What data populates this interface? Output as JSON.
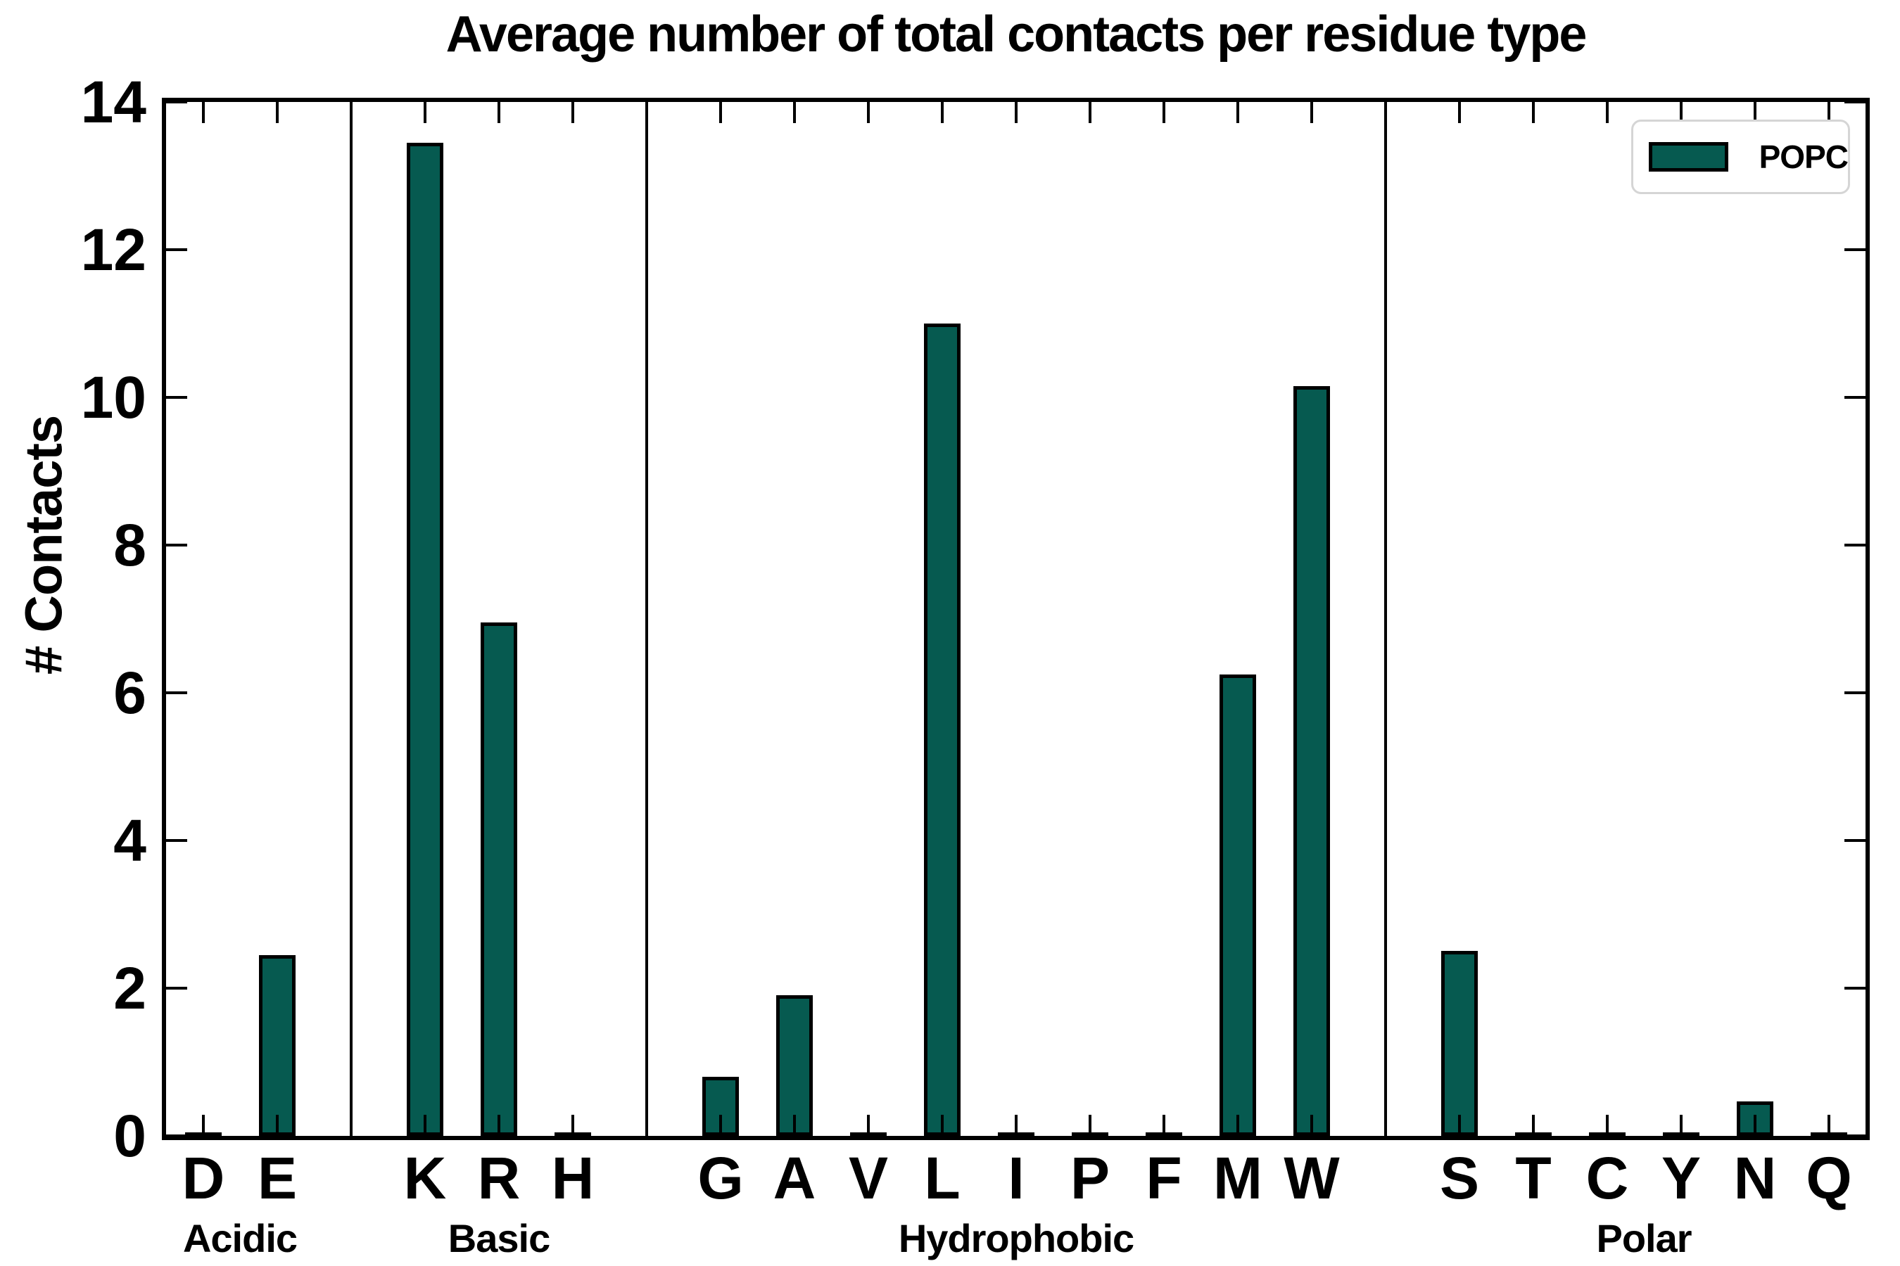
{
  "title": "Average number of total contacts per residue type",
  "y_axis_title": "# Contacts",
  "legend": {
    "label": "POPC"
  },
  "colors": {
    "bar_fill": "#065a50",
    "bar_edge": "#000000",
    "axis": "#000000",
    "legend_border": "#d5d5d5",
    "background": "#ffffff"
  },
  "chart_data": {
    "type": "bar",
    "title": "Average number of total contacts per residue type",
    "xlabel": "",
    "ylabel": "# Contacts",
    "ylim": [
      0,
      14
    ],
    "yticks": [
      0,
      2,
      4,
      6,
      8,
      10,
      12,
      14
    ],
    "grid": false,
    "legend_position": "upper right",
    "series": [
      {
        "name": "POPC",
        "color": "#065a50"
      }
    ],
    "categories": [
      "D",
      "E",
      "K",
      "R",
      "H",
      "G",
      "A",
      "V",
      "L",
      "I",
      "P",
      "F",
      "M",
      "W",
      "S",
      "T",
      "C",
      "Y",
      "N",
      "Q"
    ],
    "values": [
      0.04,
      2.45,
      13.45,
      6.95,
      0.04,
      0.8,
      1.9,
      0.04,
      11.0,
      0.04,
      0.04,
      0.04,
      6.25,
      10.15,
      2.5,
      0.04,
      0.04,
      0.04,
      0.47,
      0.04
    ],
    "groups": [
      {
        "label": "Acidic",
        "categories": [
          "D",
          "E"
        ],
        "values": [
          0.04,
          2.45
        ]
      },
      {
        "label": "Basic",
        "categories": [
          "K",
          "R",
          "H"
        ],
        "values": [
          13.45,
          6.95,
          0.04
        ]
      },
      {
        "label": "Hydrophobic",
        "categories": [
          "G",
          "A",
          "V",
          "L",
          "I",
          "P",
          "F",
          "M",
          "W"
        ],
        "values": [
          0.8,
          1.9,
          0.04,
          11.0,
          0.04,
          0.04,
          0.04,
          6.25,
          10.15
        ]
      },
      {
        "label": "Polar",
        "categories": [
          "S",
          "T",
          "C",
          "Y",
          "N",
          "Q"
        ],
        "values": [
          2.5,
          0.04,
          0.04,
          0.04,
          0.47,
          0.04
        ]
      }
    ]
  }
}
